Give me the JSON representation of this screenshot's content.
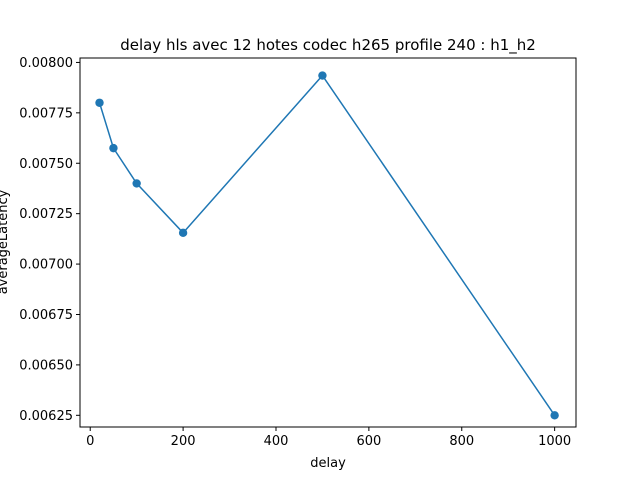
{
  "chart_data": {
    "type": "line",
    "title": "delay hls avec 12 hotes codec h265 profile 240 : h1_h2",
    "xlabel": "delay",
    "ylabel": "averageLatency",
    "xlim": [
      -22,
      1046
    ],
    "ylim": [
      0.006192,
      0.008022
    ],
    "xticks": [
      0,
      200,
      400,
      600,
      800,
      1000
    ],
    "xtick_labels": [
      "0",
      "200",
      "400",
      "600",
      "800",
      "1000"
    ],
    "yticks": [
      0.00625,
      0.0065,
      0.00675,
      0.007,
      0.00725,
      0.0075,
      0.00775,
      0.008
    ],
    "ytick_labels": [
      "0.00625",
      "0.00650",
      "0.00675",
      "0.00700",
      "0.00725",
      "0.00750",
      "0.00775",
      "0.00800"
    ],
    "grid": false,
    "series": [
      {
        "color": "#1f77b4",
        "marker": "circle",
        "x": [
          20,
          50,
          100,
          200,
          500,
          1000
        ],
        "y": [
          0.0078,
          0.007575,
          0.0074,
          0.007155,
          0.007935,
          0.00625
        ]
      }
    ]
  }
}
